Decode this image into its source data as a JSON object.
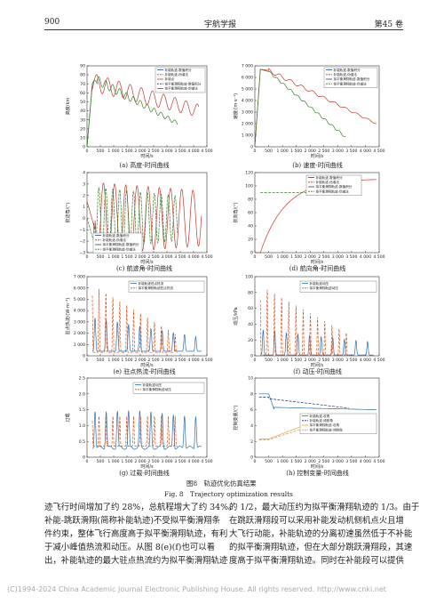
{
  "header": {
    "page_number": "900",
    "journal": "宇航学报",
    "volume": "第45 卷"
  },
  "figure": {
    "caption_cn": "图8　轨迹优化仿真结果",
    "caption_en": "Fig. 8　Trajectory optimization results"
  },
  "chart_data": [
    {
      "id": "a",
      "type": "line",
      "caption": "(a) 高度-时间曲线",
      "xlabel": "时间/s",
      "ylabel": "高度/km",
      "xlim": [
        0,
        4500
      ],
      "ylim": [
        0,
        90
      ],
      "xticks": [
        "0",
        "500",
        "1 000",
        "1 500",
        "2 000",
        "2 500",
        "3 000",
        "3 500",
        "4 000",
        "4 500"
      ],
      "yticks": [
        "0",
        "10",
        "20",
        "30",
        "40",
        "50",
        "60",
        "70",
        "80",
        "90"
      ],
      "legend": [
        "补能轨迹-数值积分",
        "补能轨迹-伪谱法",
        "补能点",
        "拟平衡滑翔轨迹-数值积分",
        "拟平衡滑翔轨迹-伪谱法"
      ],
      "series": [
        {
          "name": "补能轨迹-数值积分",
          "color": "#c0392b",
          "kind": "osc",
          "start": [
            150,
            72
          ],
          "end": [
            4200,
            40
          ],
          "period": 400,
          "amp": [
            10,
            7
          ]
        },
        {
          "name": "拟平衡滑翔轨迹-数值积分",
          "color": "#555555",
          "kind": "glide",
          "points": [
            [
              0,
              0
            ],
            [
              200,
              70
            ],
            [
              350,
              74
            ],
            [
              3400,
              25
            ]
          ],
          "period": 250,
          "amp": [
            5,
            2
          ]
        }
      ]
    },
    {
      "id": "b",
      "type": "line",
      "caption": "(b) 速度-时间曲线",
      "xlabel": "时间/s",
      "ylabel": "速度/(m·s⁻¹)",
      "xlim": [
        0,
        4500
      ],
      "ylim": [
        0,
        7000
      ],
      "xticks": [
        "0",
        "500",
        "1 000",
        "1 500",
        "2 000",
        "2 500",
        "3 000",
        "3 500",
        "4 000",
        "4 500"
      ],
      "yticks": [
        "0",
        "1 000",
        "2 000",
        "3 000",
        "4 000",
        "5 000",
        "6 000",
        "7 000"
      ],
      "legend": [
        "补能轨迹-数值积分",
        "补能轨迹-伪谱法",
        "拟平衡滑翔轨迹-数值积分",
        "拟平衡滑翔轨迹-伪谱法"
      ],
      "series": [
        {
          "name": "补能轨迹",
          "color": "#c0392b",
          "points": [
            [
              0,
              0
            ],
            [
              200,
              6700
            ],
            [
              500,
              6600
            ],
            [
              4400,
              2000
            ]
          ],
          "period": 400,
          "amp": [
            200,
            150
          ]
        },
        {
          "name": "拟平衡滑翔轨迹",
          "color": "#3a7d2c",
          "points": [
            [
              0,
              0
            ],
            [
              200,
              6700
            ],
            [
              500,
              6500
            ],
            [
              3300,
              800
            ]
          ],
          "period": 250,
          "amp": [
            120,
            60
          ]
        }
      ]
    },
    {
      "id": "c",
      "type": "line",
      "caption": "(c) 航迹角-时间曲线",
      "xlabel": "时间/s",
      "ylabel": "航迹角/(°)",
      "xlim": [
        0,
        4500
      ],
      "ylim": [
        -3,
        4
      ],
      "xticks": [
        "0",
        "500",
        "1 000",
        "1 500",
        "2 000",
        "2 500",
        "3 000",
        "3 500",
        "4 000",
        "4 500"
      ],
      "yticks": [
        "−3",
        "−2",
        "−1",
        "0",
        "1",
        "2",
        "3",
        "4"
      ],
      "legend": [
        "补能轨迹-数值积分",
        "补能轨迹-伪谱法",
        "拟平衡滑翔轨迹-数值积分",
        "拟平衡滑翔轨迹-伪谱法"
      ]
    },
    {
      "id": "d",
      "type": "line",
      "caption": "(d) 航向角-时间曲线",
      "xlabel": "时间/s",
      "ylabel": "航向角/(°)",
      "xlim": [
        0,
        4500
      ],
      "ylim": [
        0,
        120
      ],
      "xticks": [
        "0",
        "500",
        "1 000",
        "1 500",
        "2 000",
        "2 500",
        "3 000",
        "3 500",
        "4 000",
        "4 500"
      ],
      "yticks": [
        "0",
        "20",
        "40",
        "60",
        "80",
        "100",
        "120"
      ],
      "legend": [
        "补能轨迹-数值积分",
        "补能轨迹-伪谱法",
        "拟平衡滑翔轨迹-数值积分",
        "拟平衡滑翔轨迹-伪谱法"
      ]
    },
    {
      "id": "e",
      "type": "line",
      "caption": "(e) 驻点热流-时间曲线",
      "xlabel": "时间/s",
      "ylabel": "驻点热流/(W·m⁻²)",
      "xlim": [
        0,
        4500
      ],
      "ylim": [
        0,
        7000
      ],
      "xticks": [
        "0",
        "500",
        "1 000",
        "1 500",
        "2 000",
        "2 500",
        "3 000",
        "3 500",
        "4 000",
        "4 500"
      ],
      "yticks": [
        "0",
        "1 000",
        "2 000",
        "3 000",
        "4 000",
        "5 000",
        "6 000",
        "7 000"
      ],
      "legend": [
        "补能轨迹驻点热流",
        "拟平衡滑翔轨迹驻点热流"
      ]
    },
    {
      "id": "f",
      "type": "line",
      "caption": "(f) 动压-时间曲线",
      "xlabel": "时间/s",
      "ylabel": "动压/kPa",
      "xlim": [
        0,
        4500
      ],
      "ylim": [
        0,
        100
      ],
      "xticks": [
        "0",
        "500",
        "1 000",
        "1 500",
        "2 000",
        "2 500",
        "3 000",
        "3 500",
        "4 000",
        "4 500"
      ],
      "yticks": [
        "0",
        "20",
        "40",
        "60",
        "80",
        "100"
      ],
      "legend": [
        "补能轨迹动压",
        "拟平衡滑翔轨迹动压"
      ]
    },
    {
      "id": "g",
      "type": "line",
      "caption": "(g) 过载-时间曲线",
      "xlabel": "时间/s",
      "ylabel": "过载",
      "xlim": [
        0,
        4500
      ],
      "ylim": [
        0,
        2.5
      ],
      "xticks": [
        "0",
        "500",
        "1 000",
        "1 500",
        "2 000",
        "2 500",
        "3 000",
        "3 500",
        "4 000",
        "4 500"
      ],
      "yticks": [
        "0",
        "0.5",
        "1.0",
        "1.5",
        "2.0",
        "2.5"
      ],
      "legend": [
        "补能轨迹动压",
        "拟平衡滑翔轨迹动压"
      ]
    },
    {
      "id": "h",
      "type": "line",
      "caption": "(h) 控制变量-时间曲线",
      "xlabel": "时间/s",
      "ylabel": "控制变量/(°)",
      "xlim": [
        0,
        4500
      ],
      "ylim": [
        0,
        10
      ],
      "xticks": [
        "0",
        "500",
        "1 000",
        "1 500",
        "2 000",
        "2 500",
        "3 000",
        "3 500",
        "4 000",
        "4 500"
      ],
      "yticks": [
        "0",
        "2",
        "4",
        "6",
        "8",
        "10"
      ],
      "legend": [
        "补能轨迹-攻角",
        "补能轨迹-倾侧角",
        "拟平衡滑翔轨迹-攻角",
        "拟平衡滑翔轨迹-倾侧角"
      ]
    }
  ],
  "body": {
    "left": [
      "迹飞行时间增加了约 28%，总航程增大了约 34%。",
      "补能-跳跃滑翔(简称补能轨迹)不受拟平衡滑翔条",
      "件约束，整体飞行高度高于拟平衡滑翔轨迹，有利",
      "于减小峰值热流和动压。从图 8(e)(f)也可以看",
      "出，补能轨迹的最大驻点热流约为拟平衡滑翔轨迹"
    ],
    "right": [
      "的 1/2，最大动压约为拟平衡滑翔轨迹的 1/3。由于",
      "在跳跃滑翔段可以采用补能发动机侧机点火且增",
      "大飞行动能，补能轨迹的分离初速虽然低于不补能",
      "的拟平衡滑翔轨迹，但在大部分跳跃滑翔段，其速",
      "度高于拟平衡滑翔轨迹。同时在补能段可以提供"
    ]
  },
  "footer": "(C)1994-2024 China Academic Journal Electronic Publishing House. All rights reserved.   http://www.cnki.net"
}
